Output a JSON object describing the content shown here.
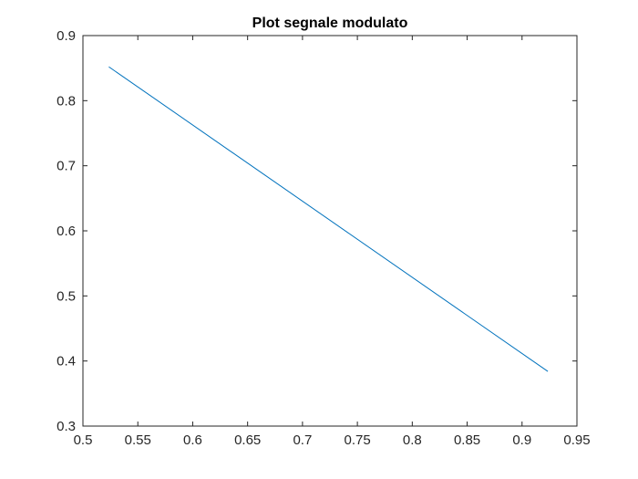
{
  "chart_data": {
    "type": "line",
    "title": "Plot segnale modulato",
    "xlabel": "",
    "ylabel": "",
    "xlim": [
      0.5,
      0.95
    ],
    "ylim": [
      0.3,
      0.9
    ],
    "xticks": [
      0.5,
      0.55,
      0.6,
      0.65,
      0.7,
      0.75,
      0.8,
      0.85,
      0.9,
      0.95
    ],
    "xtick_labels": [
      "0.5",
      "0.55",
      "0.6",
      "0.65",
      "0.7",
      "0.75",
      "0.8",
      "0.85",
      "0.9",
      "0.95"
    ],
    "yticks": [
      0.3,
      0.4,
      0.5,
      0.6,
      0.7,
      0.8,
      0.9
    ],
    "ytick_labels": [
      "0.3",
      "0.4",
      "0.5",
      "0.6",
      "0.7",
      "0.8",
      "0.9"
    ],
    "grid": false,
    "series": [
      {
        "color": "#0072BD",
        "x": [
          0.5236,
          0.9235
        ],
        "y": [
          0.852,
          0.384
        ]
      }
    ]
  }
}
